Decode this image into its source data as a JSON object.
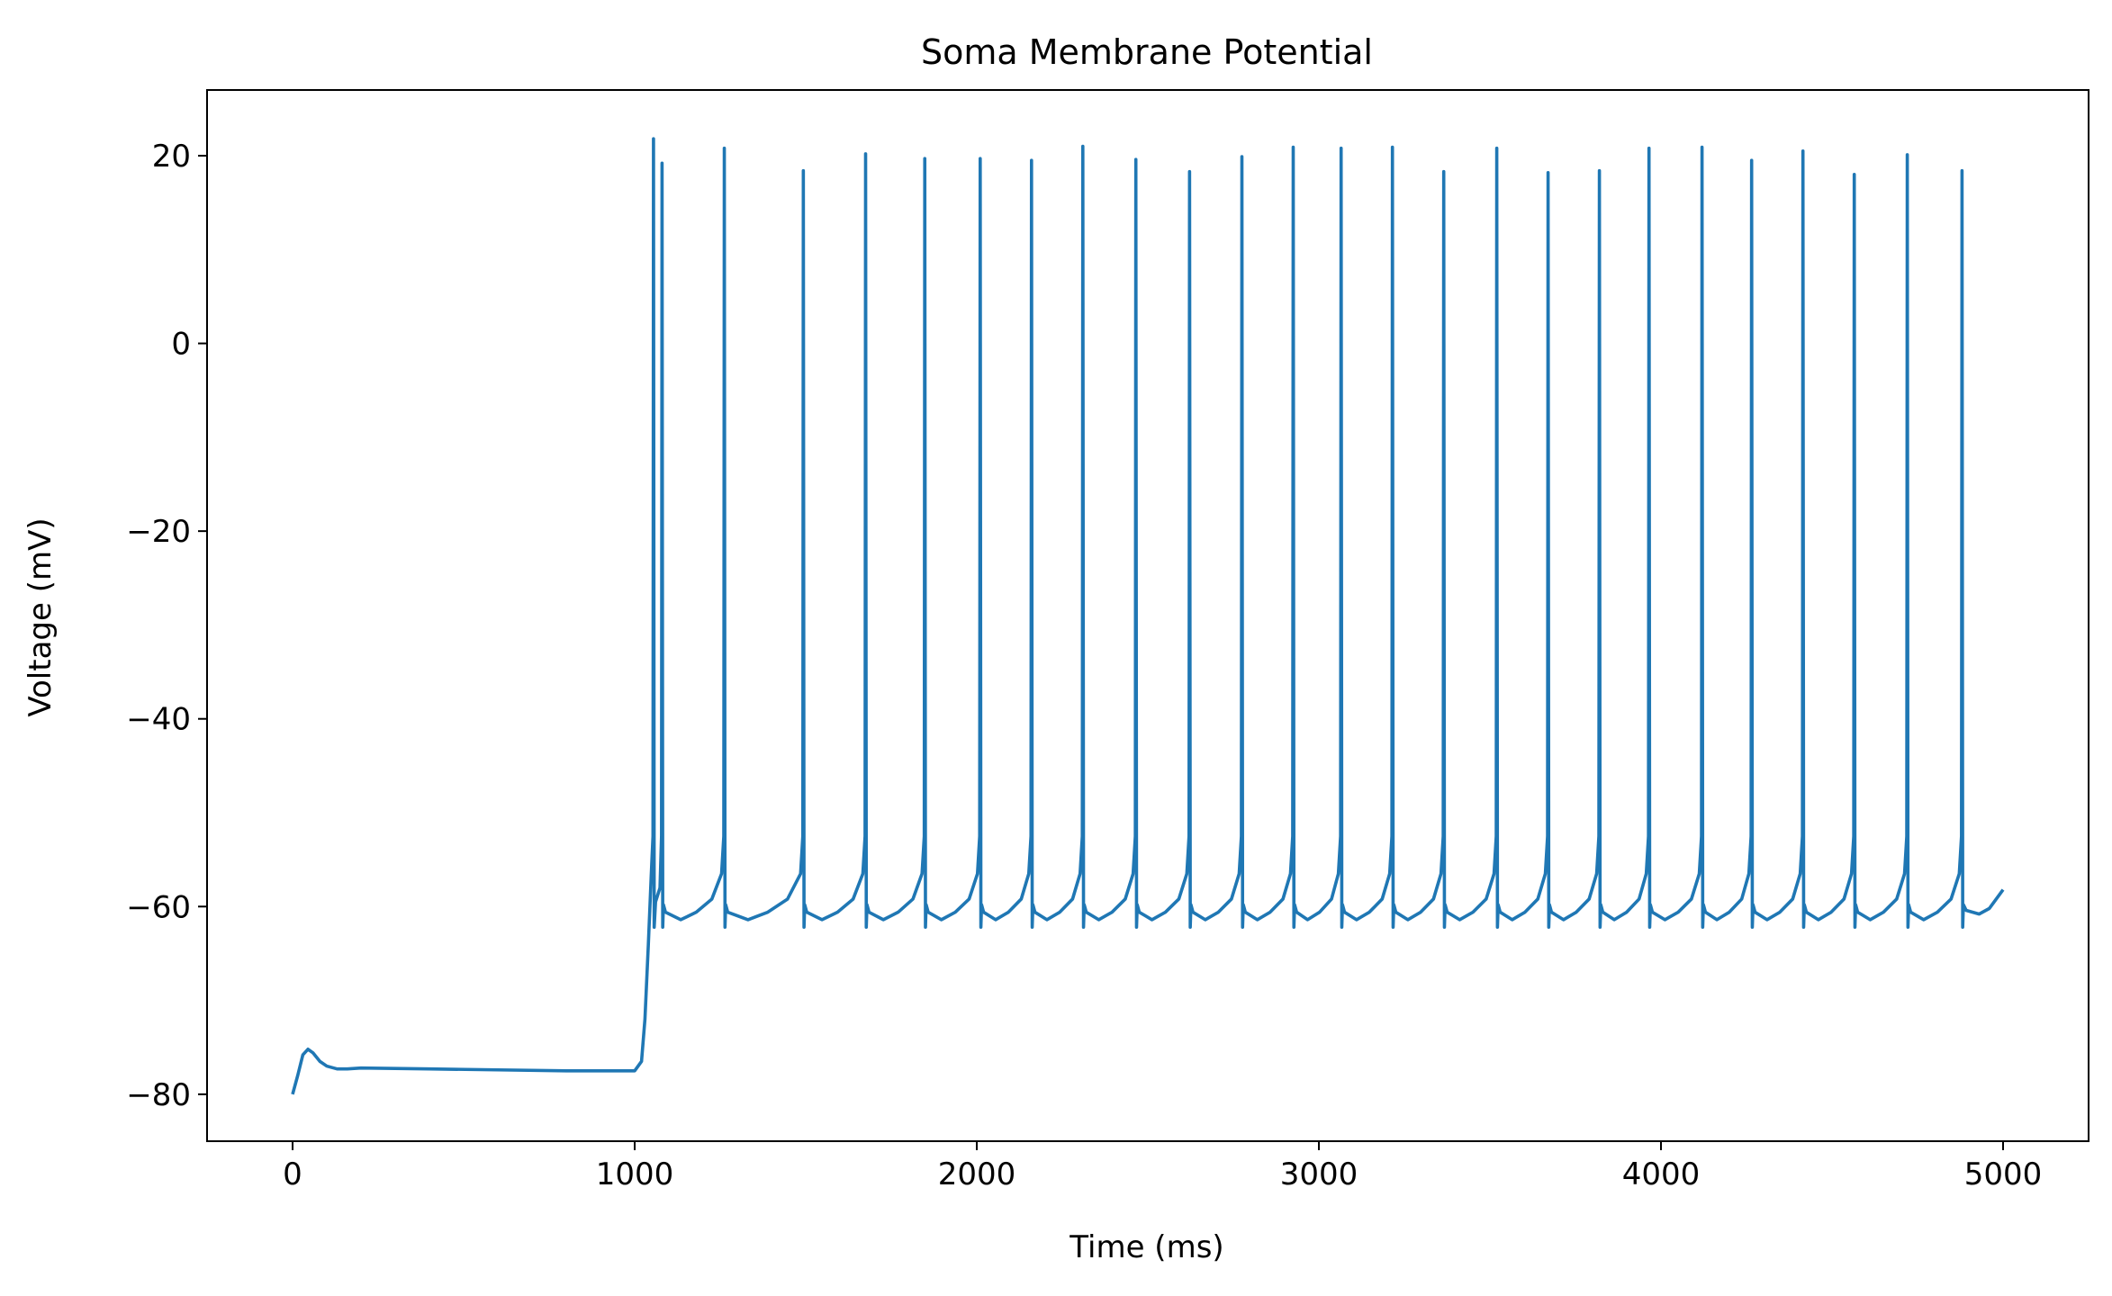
{
  "chart_data": {
    "type": "line",
    "title": "Soma Membrane Potential",
    "xlabel": "Time (ms)",
    "ylabel": "Voltage (mV)",
    "xlim": [
      -250,
      5250
    ],
    "ylim": [
      -85,
      27
    ],
    "xticks": [
      0,
      1000,
      2000,
      3000,
      4000,
      5000
    ],
    "xtick_labels": [
      "0",
      "1000",
      "2000",
      "3000",
      "4000",
      "5000"
    ],
    "yticks": [
      -80,
      -60,
      -40,
      -20,
      0,
      20
    ],
    "ytick_labels": [
      "−80",
      "−60",
      "−40",
      "−20",
      "0",
      "20"
    ],
    "grid": false,
    "line_color": "#1f77b4",
    "resting_phase": {
      "x": [
        0,
        15,
        30,
        45,
        60,
        80,
        100,
        130,
        160,
        200,
        400,
        600,
        800,
        1000,
        1020
      ],
      "y": [
        -80,
        -78,
        -75.8,
        -75.2,
        -75.6,
        -76.5,
        -77,
        -77.3,
        -77.3,
        -77.2,
        -77.3,
        -77.4,
        -77.5,
        -77.5,
        -76.5
      ]
    },
    "spikes": [
      {
        "t": 1055,
        "peak": 21.8
      },
      {
        "t": 1080,
        "peak": 19.2
      },
      {
        "t": 1262,
        "peak": 20.8
      },
      {
        "t": 1493,
        "peak": 18.4
      },
      {
        "t": 1675,
        "peak": 20.2
      },
      {
        "t": 1848,
        "peak": 19.7
      },
      {
        "t": 2010,
        "peak": 19.7
      },
      {
        "t": 2160,
        "peak": 19.5
      },
      {
        "t": 2310,
        "peak": 21
      },
      {
        "t": 2465,
        "peak": 19.6
      },
      {
        "t": 2622,
        "peak": 18.3
      },
      {
        "t": 2775,
        "peak": 19.9
      },
      {
        "t": 2925,
        "peak": 20.9
      },
      {
        "t": 3065,
        "peak": 20.8
      },
      {
        "t": 3215,
        "peak": 20.9
      },
      {
        "t": 3365,
        "peak": 18.3
      },
      {
        "t": 3520,
        "peak": 20.8
      },
      {
        "t": 3670,
        "peak": 18.2
      },
      {
        "t": 3820,
        "peak": 18.4
      },
      {
        "t": 3965,
        "peak": 20.8
      },
      {
        "t": 4120,
        "peak": 20.9
      },
      {
        "t": 4265,
        "peak": 19.5
      },
      {
        "t": 4415,
        "peak": 20.5
      },
      {
        "t": 4565,
        "peak": 18
      },
      {
        "t": 4720,
        "peak": 20.1
      },
      {
        "t": 4880,
        "peak": 18.4
      }
    ],
    "trough": -62.2,
    "pre_spike_threshold": -56.5,
    "end_value": -58.2,
    "end_time": 5000
  }
}
